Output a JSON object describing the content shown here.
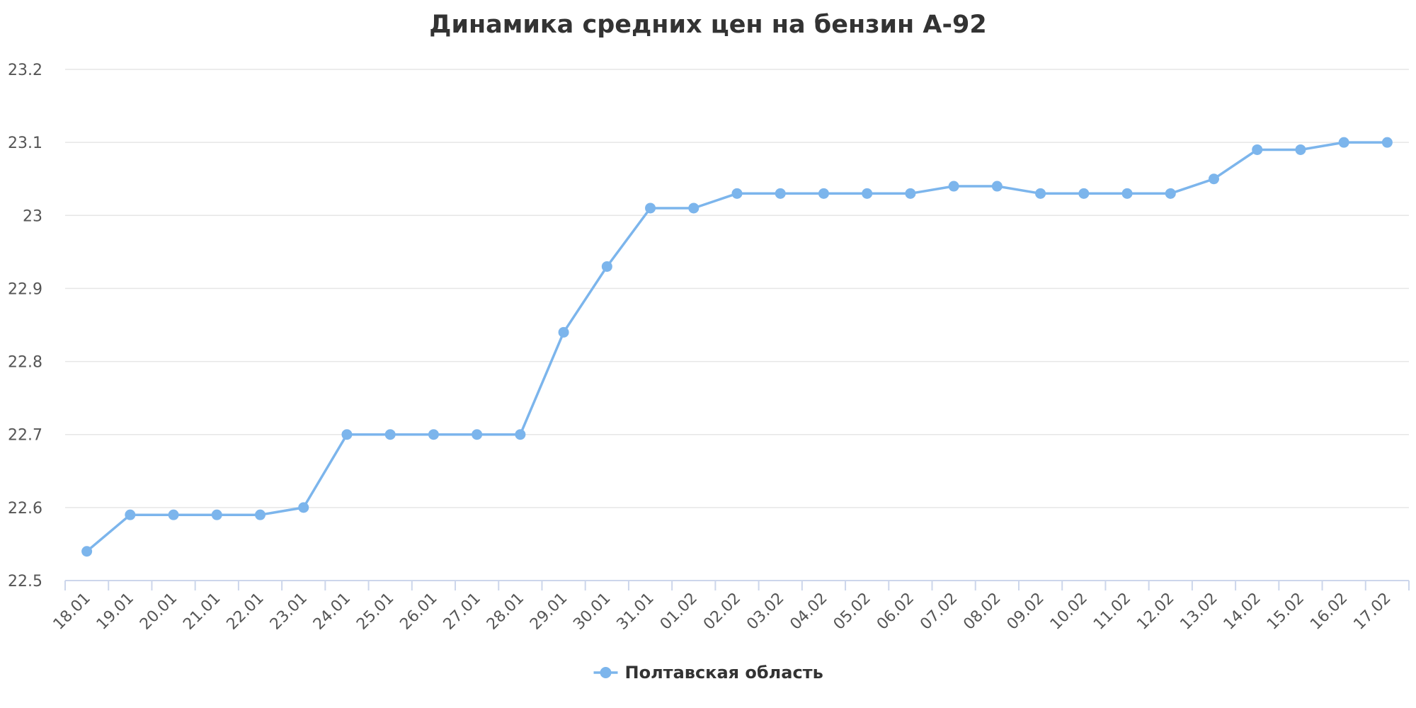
{
  "chart_data": {
    "type": "line",
    "title": "Динамика средних цен на бензин А-92",
    "xlabel": "",
    "ylabel": "",
    "categories": [
      "18.01",
      "19.01",
      "20.01",
      "21.01",
      "22.01",
      "23.01",
      "24.01",
      "25.01",
      "26.01",
      "27.01",
      "28.01",
      "29.01",
      "30.01",
      "31.01",
      "01.02",
      "02.02",
      "03.02",
      "04.02",
      "05.02",
      "06.02",
      "07.02",
      "08.02",
      "09.02",
      "10.02",
      "11.02",
      "12.02",
      "13.02",
      "14.02",
      "15.02",
      "16.02",
      "17.02"
    ],
    "series": [
      {
        "name": "Полтавская область",
        "color": "#7cb5ec",
        "values": [
          22.54,
          22.59,
          22.59,
          22.59,
          22.59,
          22.6,
          22.7,
          22.7,
          22.7,
          22.7,
          22.7,
          22.84,
          22.93,
          23.01,
          23.01,
          23.03,
          23.03,
          23.03,
          23.03,
          23.03,
          23.04,
          23.04,
          23.03,
          23.03,
          23.03,
          23.03,
          23.05,
          23.09,
          23.09,
          23.1,
          23.1
        ]
      }
    ],
    "ylim": [
      22.5,
      23.2
    ],
    "yticks": [
      "22.5",
      "22.6",
      "22.7",
      "22.8",
      "22.9",
      "23",
      "23.1",
      "23.2"
    ],
    "grid": true,
    "legend_position": "bottom-center"
  }
}
